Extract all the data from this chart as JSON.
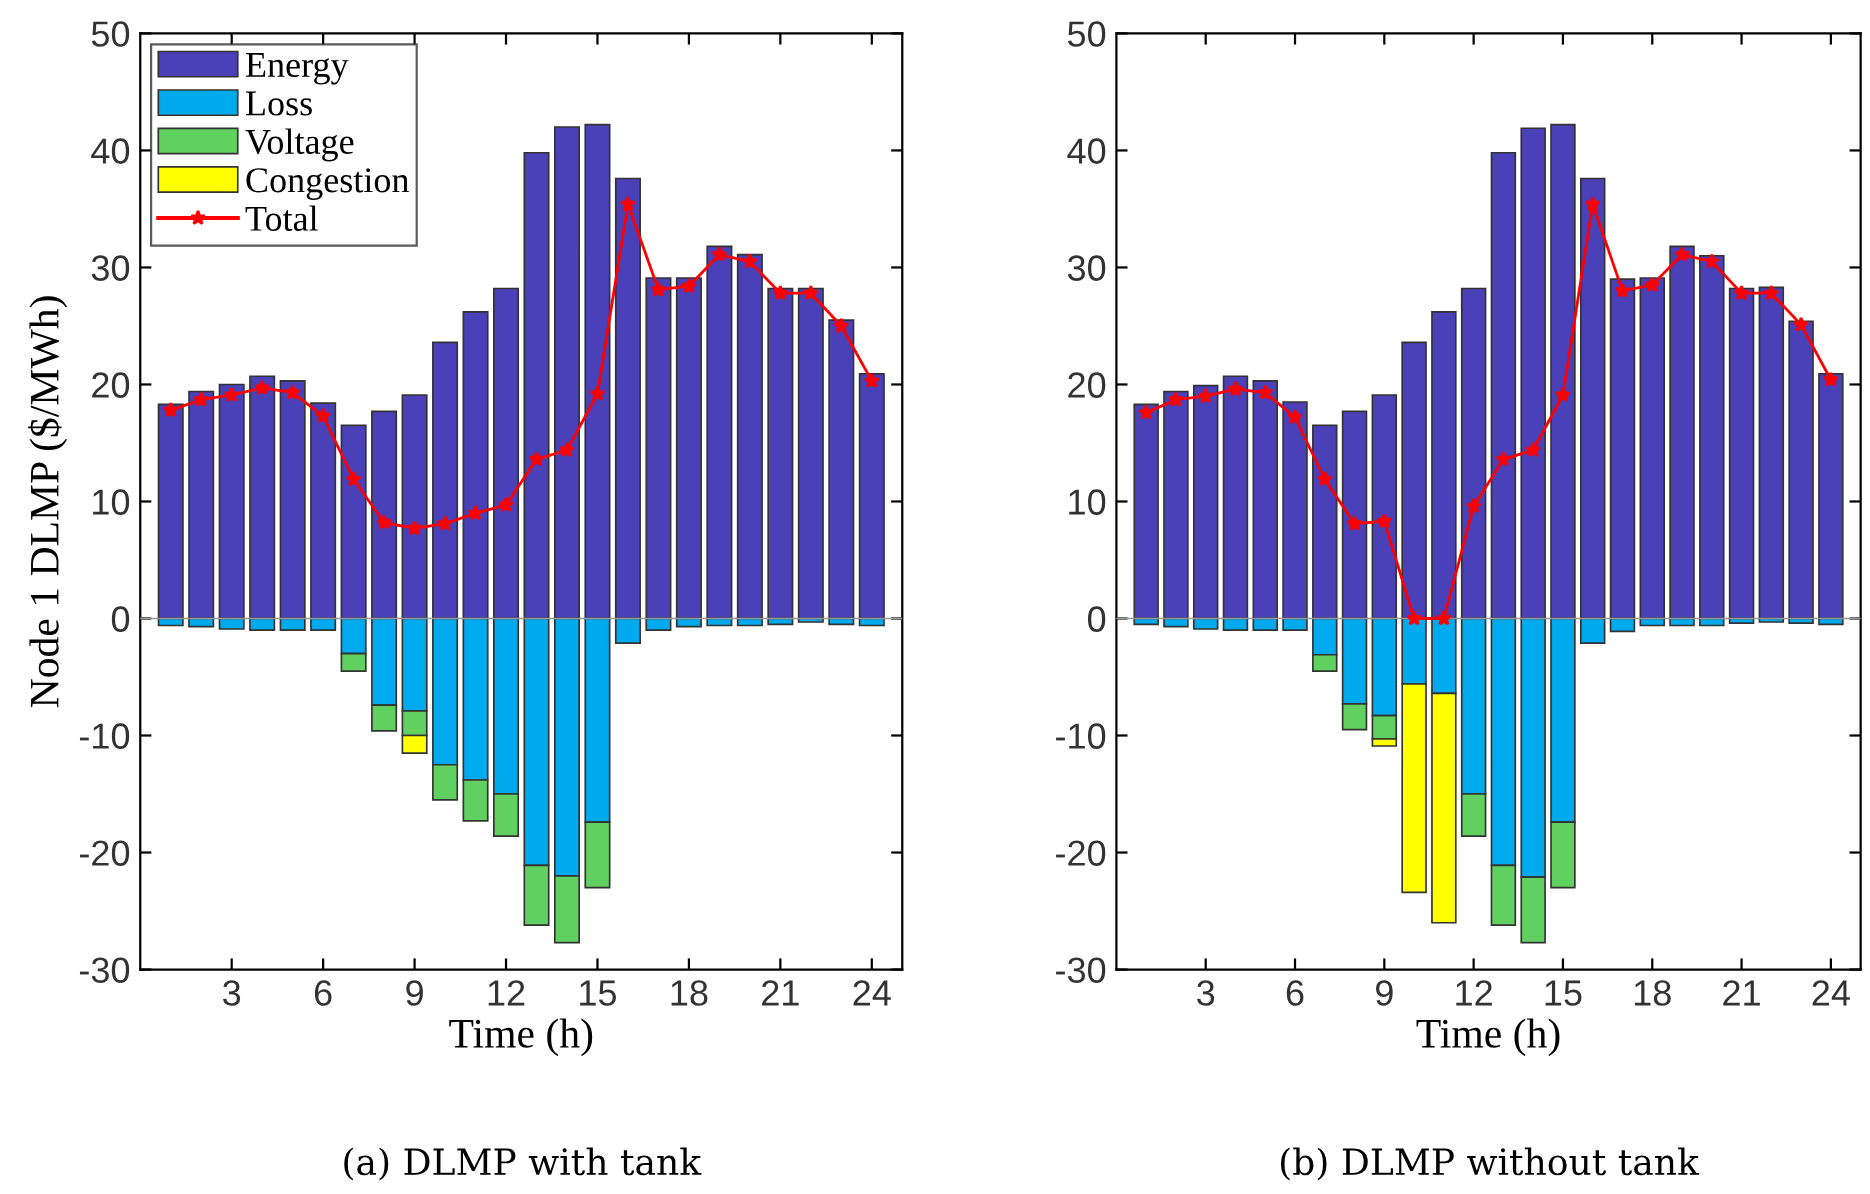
{
  "chart_data": [
    {
      "type": "bar",
      "stacked": true,
      "title": "(a) DLMP with tank",
      "xlabel": "Time (h)",
      "ylabel": "Node 1 DLMP ($/MWh)",
      "x": [
        1,
        2,
        3,
        4,
        5,
        6,
        7,
        8,
        9,
        10,
        11,
        12,
        13,
        14,
        15,
        16,
        17,
        18,
        19,
        20,
        21,
        22,
        23,
        24
      ],
      "xlim": [
        0,
        25
      ],
      "xticks": [
        3,
        6,
        9,
        12,
        15,
        18,
        21,
        24
      ],
      "ylim": [
        -30,
        50
      ],
      "yticks": [
        -30,
        -20,
        -10,
        0,
        10,
        20,
        30,
        40,
        50
      ],
      "grid": false,
      "legend": "top left",
      "marker": "star",
      "ref_lines": [
        {
          "axis": "y",
          "value": 0,
          "color": "#999999"
        }
      ],
      "series": [
        {
          "name": "Energy",
          "color": "#4a40b8",
          "values": [
            18.3,
            19.4,
            20.0,
            20.7,
            20.3,
            18.4,
            16.5,
            17.7,
            19.1,
            23.6,
            26.2,
            28.2,
            39.8,
            42.0,
            42.2,
            37.6,
            29.1,
            29.1,
            31.8,
            31.1,
            28.2,
            28.2,
            25.5,
            20.9
          ]
        },
        {
          "name": "Loss",
          "color": "#00aaee",
          "values": [
            -0.6,
            -0.7,
            -0.9,
            -1.0,
            -1.0,
            -1.0,
            -3.0,
            -7.4,
            -7.9,
            -12.5,
            -13.8,
            -15.0,
            -21.1,
            -22.0,
            -17.4,
            -2.1,
            -1.0,
            -0.7,
            -0.6,
            -0.6,
            -0.5,
            -0.3,
            -0.5,
            -0.6
          ]
        },
        {
          "name": "Voltage",
          "color": "#60d060",
          "values": [
            null,
            null,
            null,
            null,
            null,
            null,
            -1.5,
            -2.2,
            -2.1,
            -3.0,
            -3.5,
            -3.6,
            -5.1,
            -5.7,
            -5.6,
            null,
            null,
            null,
            null,
            null,
            null,
            null,
            null,
            null
          ]
        },
        {
          "name": "Congestion",
          "color": "#ffff00",
          "values": [
            null,
            null,
            null,
            null,
            null,
            null,
            null,
            null,
            -1.5,
            null,
            null,
            null,
            null,
            null,
            null,
            null,
            null,
            null,
            null,
            null,
            null,
            null,
            null,
            null
          ]
        },
        {
          "name": "Total",
          "type": "line",
          "color": "#ff0000",
          "values": [
            17.8,
            18.7,
            19.1,
            19.7,
            19.3,
            17.3,
            11.9,
            8.2,
            7.7,
            8.1,
            9.0,
            9.7,
            13.6,
            14.4,
            19.2,
            35.4,
            28.1,
            28.4,
            31.1,
            30.5,
            27.8,
            27.8,
            25.0,
            20.3
          ]
        }
      ]
    },
    {
      "type": "bar",
      "stacked": true,
      "title": "(b) DLMP without tank",
      "xlabel": "Time (h)",
      "x": [
        1,
        2,
        3,
        4,
        5,
        6,
        7,
        8,
        9,
        10,
        11,
        12,
        13,
        14,
        15,
        16,
        17,
        18,
        19,
        20,
        21,
        22,
        23,
        24
      ],
      "xlim": [
        0,
        25
      ],
      "xticks": [
        3,
        6,
        9,
        12,
        15,
        18,
        21,
        24
      ],
      "ylim": [
        -30,
        50
      ],
      "yticks": [
        -30,
        -20,
        -10,
        0,
        10,
        20,
        30,
        40,
        50
      ],
      "grid": false,
      "marker": "star",
      "ref_lines": [
        {
          "axis": "y",
          "value": 0,
          "color": "#999999"
        }
      ],
      "series": [
        {
          "color": "#4a40b8",
          "values": [
            18.3,
            19.4,
            19.9,
            20.7,
            20.3,
            18.5,
            16.5,
            17.7,
            19.1,
            23.6,
            26.2,
            28.2,
            39.8,
            41.9,
            42.2,
            37.6,
            29.0,
            29.1,
            31.8,
            31.0,
            28.2,
            28.3,
            25.4,
            20.9
          ]
        },
        {
          "color": "#00aaee",
          "values": [
            -0.5,
            -0.7,
            -0.9,
            -1.0,
            -1.0,
            -1.0,
            -3.1,
            -7.3,
            -8.3,
            -5.6,
            -6.4,
            -15.0,
            -21.1,
            -22.1,
            -17.4,
            -2.1,
            -1.1,
            -0.6,
            -0.6,
            -0.6,
            -0.4,
            -0.3,
            -0.4,
            -0.5
          ]
        },
        {
          "color": "#60d060",
          "values": [
            null,
            null,
            null,
            null,
            null,
            null,
            -1.4,
            -2.2,
            -2.0,
            null,
            null,
            -3.6,
            -5.1,
            -5.6,
            -5.6,
            null,
            null,
            null,
            null,
            null,
            null,
            null,
            null,
            null
          ]
        },
        {
          "color": "#ffff00",
          "values": [
            null,
            null,
            null,
            null,
            null,
            null,
            null,
            null,
            -0.6,
            -17.8,
            -19.6,
            null,
            null,
            null,
            null,
            null,
            null,
            null,
            null,
            null,
            null,
            null,
            null,
            null
          ]
        },
        {
          "type": "line",
          "color": "#ff0000",
          "values": [
            17.6,
            18.7,
            19.0,
            19.6,
            19.3,
            17.2,
            11.9,
            8.1,
            8.3,
            0,
            0,
            9.6,
            13.6,
            14.4,
            19.1,
            35.4,
            28.0,
            28.5,
            31.1,
            30.5,
            27.8,
            27.8,
            25.1,
            20.4
          ]
        }
      ]
    }
  ]
}
